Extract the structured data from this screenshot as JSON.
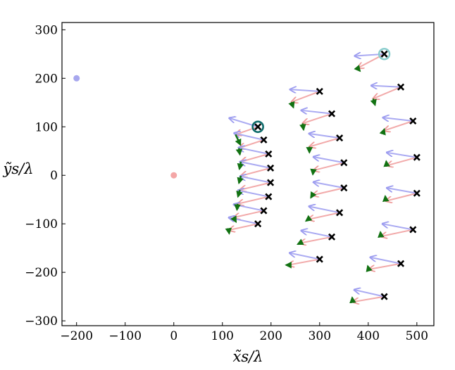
{
  "chart_data": {
    "type": "scatter",
    "title": "",
    "xlabel": "x̃s/λ",
    "ylabel": "ỹs/λ",
    "xlim": [
      -230,
      535
    ],
    "ylim": [
      -310,
      315
    ],
    "xticks": [
      -200,
      -100,
      0,
      100,
      200,
      300,
      400,
      500
    ],
    "yticks": [
      -300,
      -200,
      -100,
      0,
      100,
      200,
      300
    ],
    "xtick_labels": [
      "−200",
      "−100",
      "0",
      "100",
      "200",
      "300",
      "400",
      "500"
    ],
    "ytick_labels": [
      "−300",
      "−200",
      "−100",
      "0",
      "100",
      "200",
      "300"
    ],
    "grid": false,
    "colors": {
      "blue_source": "#a7a7ee",
      "red_source": "#f4a6a6",
      "blue_arrow": "#aaaaf2",
      "red_arrow": "#f2aaaa",
      "green_arrow": "#127212",
      "marker": "#000000",
      "ring_dark": "#0e6b6b",
      "ring_light": "#86cccc"
    },
    "sources": [
      {
        "x": -200,
        "y": 200,
        "color": "blue"
      },
      {
        "x": 0,
        "y": 0,
        "color": "red"
      }
    ],
    "highlighted": [
      {
        "x": 173,
        "y": 100,
        "ring": "dark"
      },
      {
        "x": 433,
        "y": 250,
        "ring": "light"
      }
    ],
    "arrows": [
      {
        "x": 173,
        "y": 100,
        "blue": [
          114,
          118
        ],
        "red": [
          127,
          84
        ],
        "green": [
          137,
          63
        ]
      },
      {
        "x": 185,
        "y": 73,
        "blue": [
          124,
          87
        ],
        "red": [
          134,
          56
        ],
        "green": [
          136,
          43
        ]
      },
      {
        "x": 195,
        "y": 44,
        "blue": [
          133,
          57
        ],
        "red": [
          138,
          28
        ],
        "green": [
          135,
          13
        ]
      },
      {
        "x": 199,
        "y": 15,
        "blue": [
          136,
          28
        ],
        "red": [
          138,
          -1
        ],
        "green": [
          134,
          -16
        ]
      },
      {
        "x": 199,
        "y": -15,
        "blue": [
          136,
          -2
        ],
        "red": [
          136,
          -30
        ],
        "green": [
          132,
          -44
        ]
      },
      {
        "x": 195,
        "y": -44,
        "blue": [
          132,
          -31
        ],
        "red": [
          131,
          -59
        ],
        "green": [
          130,
          -71
        ]
      },
      {
        "x": 185,
        "y": -73,
        "blue": [
          123,
          -60
        ],
        "red": [
          123,
          -87
        ],
        "green": [
          128,
          -96
        ]
      },
      {
        "x": 173,
        "y": -100,
        "blue": [
          113,
          -87
        ],
        "red": [
          113,
          -113
        ],
        "green": [
          114,
          -120
        ]
      },
      {
        "x": 300,
        "y": 173,
        "blue": [
          239,
          177
        ],
        "red": [
          242,
          151
        ],
        "green": [
          246,
          140
        ]
      },
      {
        "x": 325,
        "y": 127,
        "blue": [
          262,
          134
        ],
        "red": [
          265,
          107
        ],
        "green": [
          267,
          94
        ]
      },
      {
        "x": 341,
        "y": 77,
        "blue": [
          278,
          86
        ],
        "red": [
          279,
          59
        ],
        "green": [
          279,
          47
        ]
      },
      {
        "x": 350,
        "y": 26,
        "blue": [
          287,
          38
        ],
        "red": [
          287,
          10
        ],
        "green": [
          286,
          2
        ]
      },
      {
        "x": 350,
        "y": -26,
        "blue": [
          287,
          -14
        ],
        "red": [
          285,
          -41
        ],
        "green": [
          282,
          -46
        ]
      },
      {
        "x": 341,
        "y": -77,
        "blue": [
          278,
          -64
        ],
        "red": [
          276,
          -91
        ],
        "green": [
          272,
          -94
        ]
      },
      {
        "x": 325,
        "y": -127,
        "blue": [
          262,
          -114
        ],
        "red": [
          259,
          -140
        ],
        "green": [
          255,
          -142
        ]
      },
      {
        "x": 300,
        "y": -173,
        "blue": [
          238,
          -160
        ],
        "red": [
          235,
          -185
        ],
        "green": [
          231,
          -185
        ]
      },
      {
        "x": 433,
        "y": 250,
        "blue": [
          372,
          246
        ],
        "red": [
          378,
          221
        ],
        "green": [
          383,
          215
        ]
      },
      {
        "x": 467,
        "y": 182,
        "blue": [
          406,
          185
        ],
        "red": [
          410,
          158
        ],
        "green": [
          414,
          145
        ]
      },
      {
        "x": 492,
        "y": 112,
        "blue": [
          430,
          119
        ],
        "red": [
          432,
          92
        ],
        "green": [
          433,
          95
        ]
      },
      {
        "x": 500,
        "y": 37,
        "blue": [
          438,
          47
        ],
        "red": [
          438,
          20
        ],
        "green": [
          437,
          29
        ]
      },
      {
        "x": 500,
        "y": -37,
        "blue": [
          438,
          -26
        ],
        "red": [
          436,
          -53
        ],
        "green": [
          435,
          -43
        ]
      },
      {
        "x": 492,
        "y": -112,
        "blue": [
          429,
          -100
        ],
        "red": [
          426,
          -126
        ],
        "green": [
          425,
          -117
        ]
      },
      {
        "x": 467,
        "y": -182,
        "blue": [
          404,
          -169
        ],
        "red": [
          401,
          -194
        ],
        "green": [
          399,
          -187
        ]
      },
      {
        "x": 433,
        "y": -250,
        "blue": [
          371,
          -236
        ],
        "red": [
          368,
          -261
        ],
        "green": [
          367,
          -252
        ]
      }
    ]
  }
}
